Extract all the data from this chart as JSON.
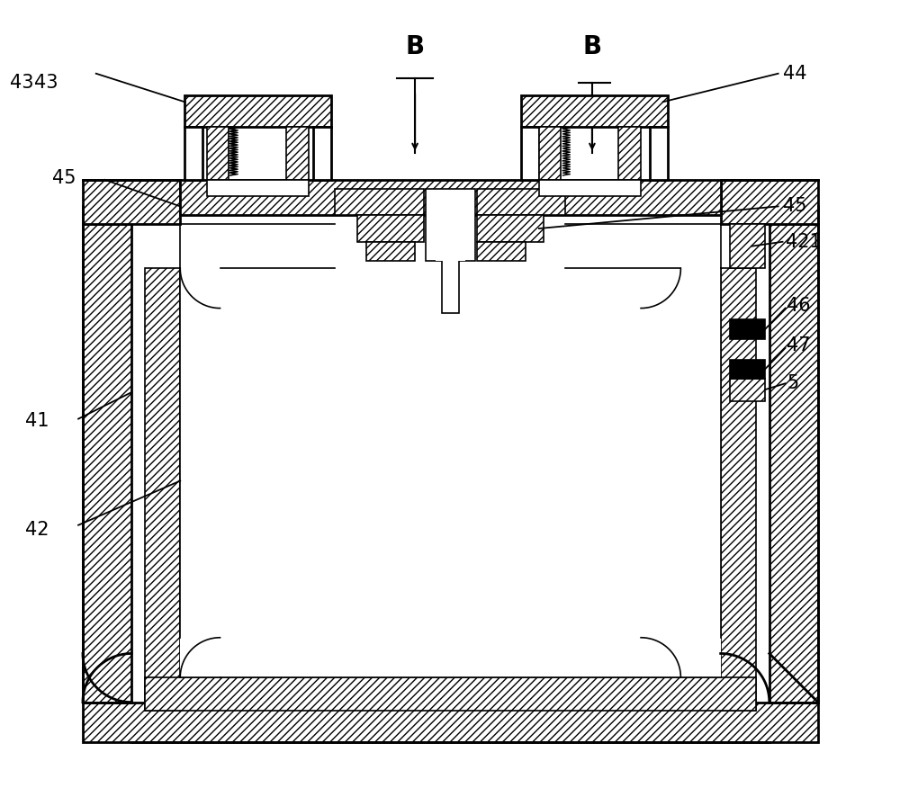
{
  "bg_color": "#ffffff",
  "line_color": "#000000",
  "figsize": [
    10.0,
    8.86
  ],
  "dpi": 100,
  "lw_main": 2.0,
  "lw_thin": 1.2,
  "label_fs": 15
}
